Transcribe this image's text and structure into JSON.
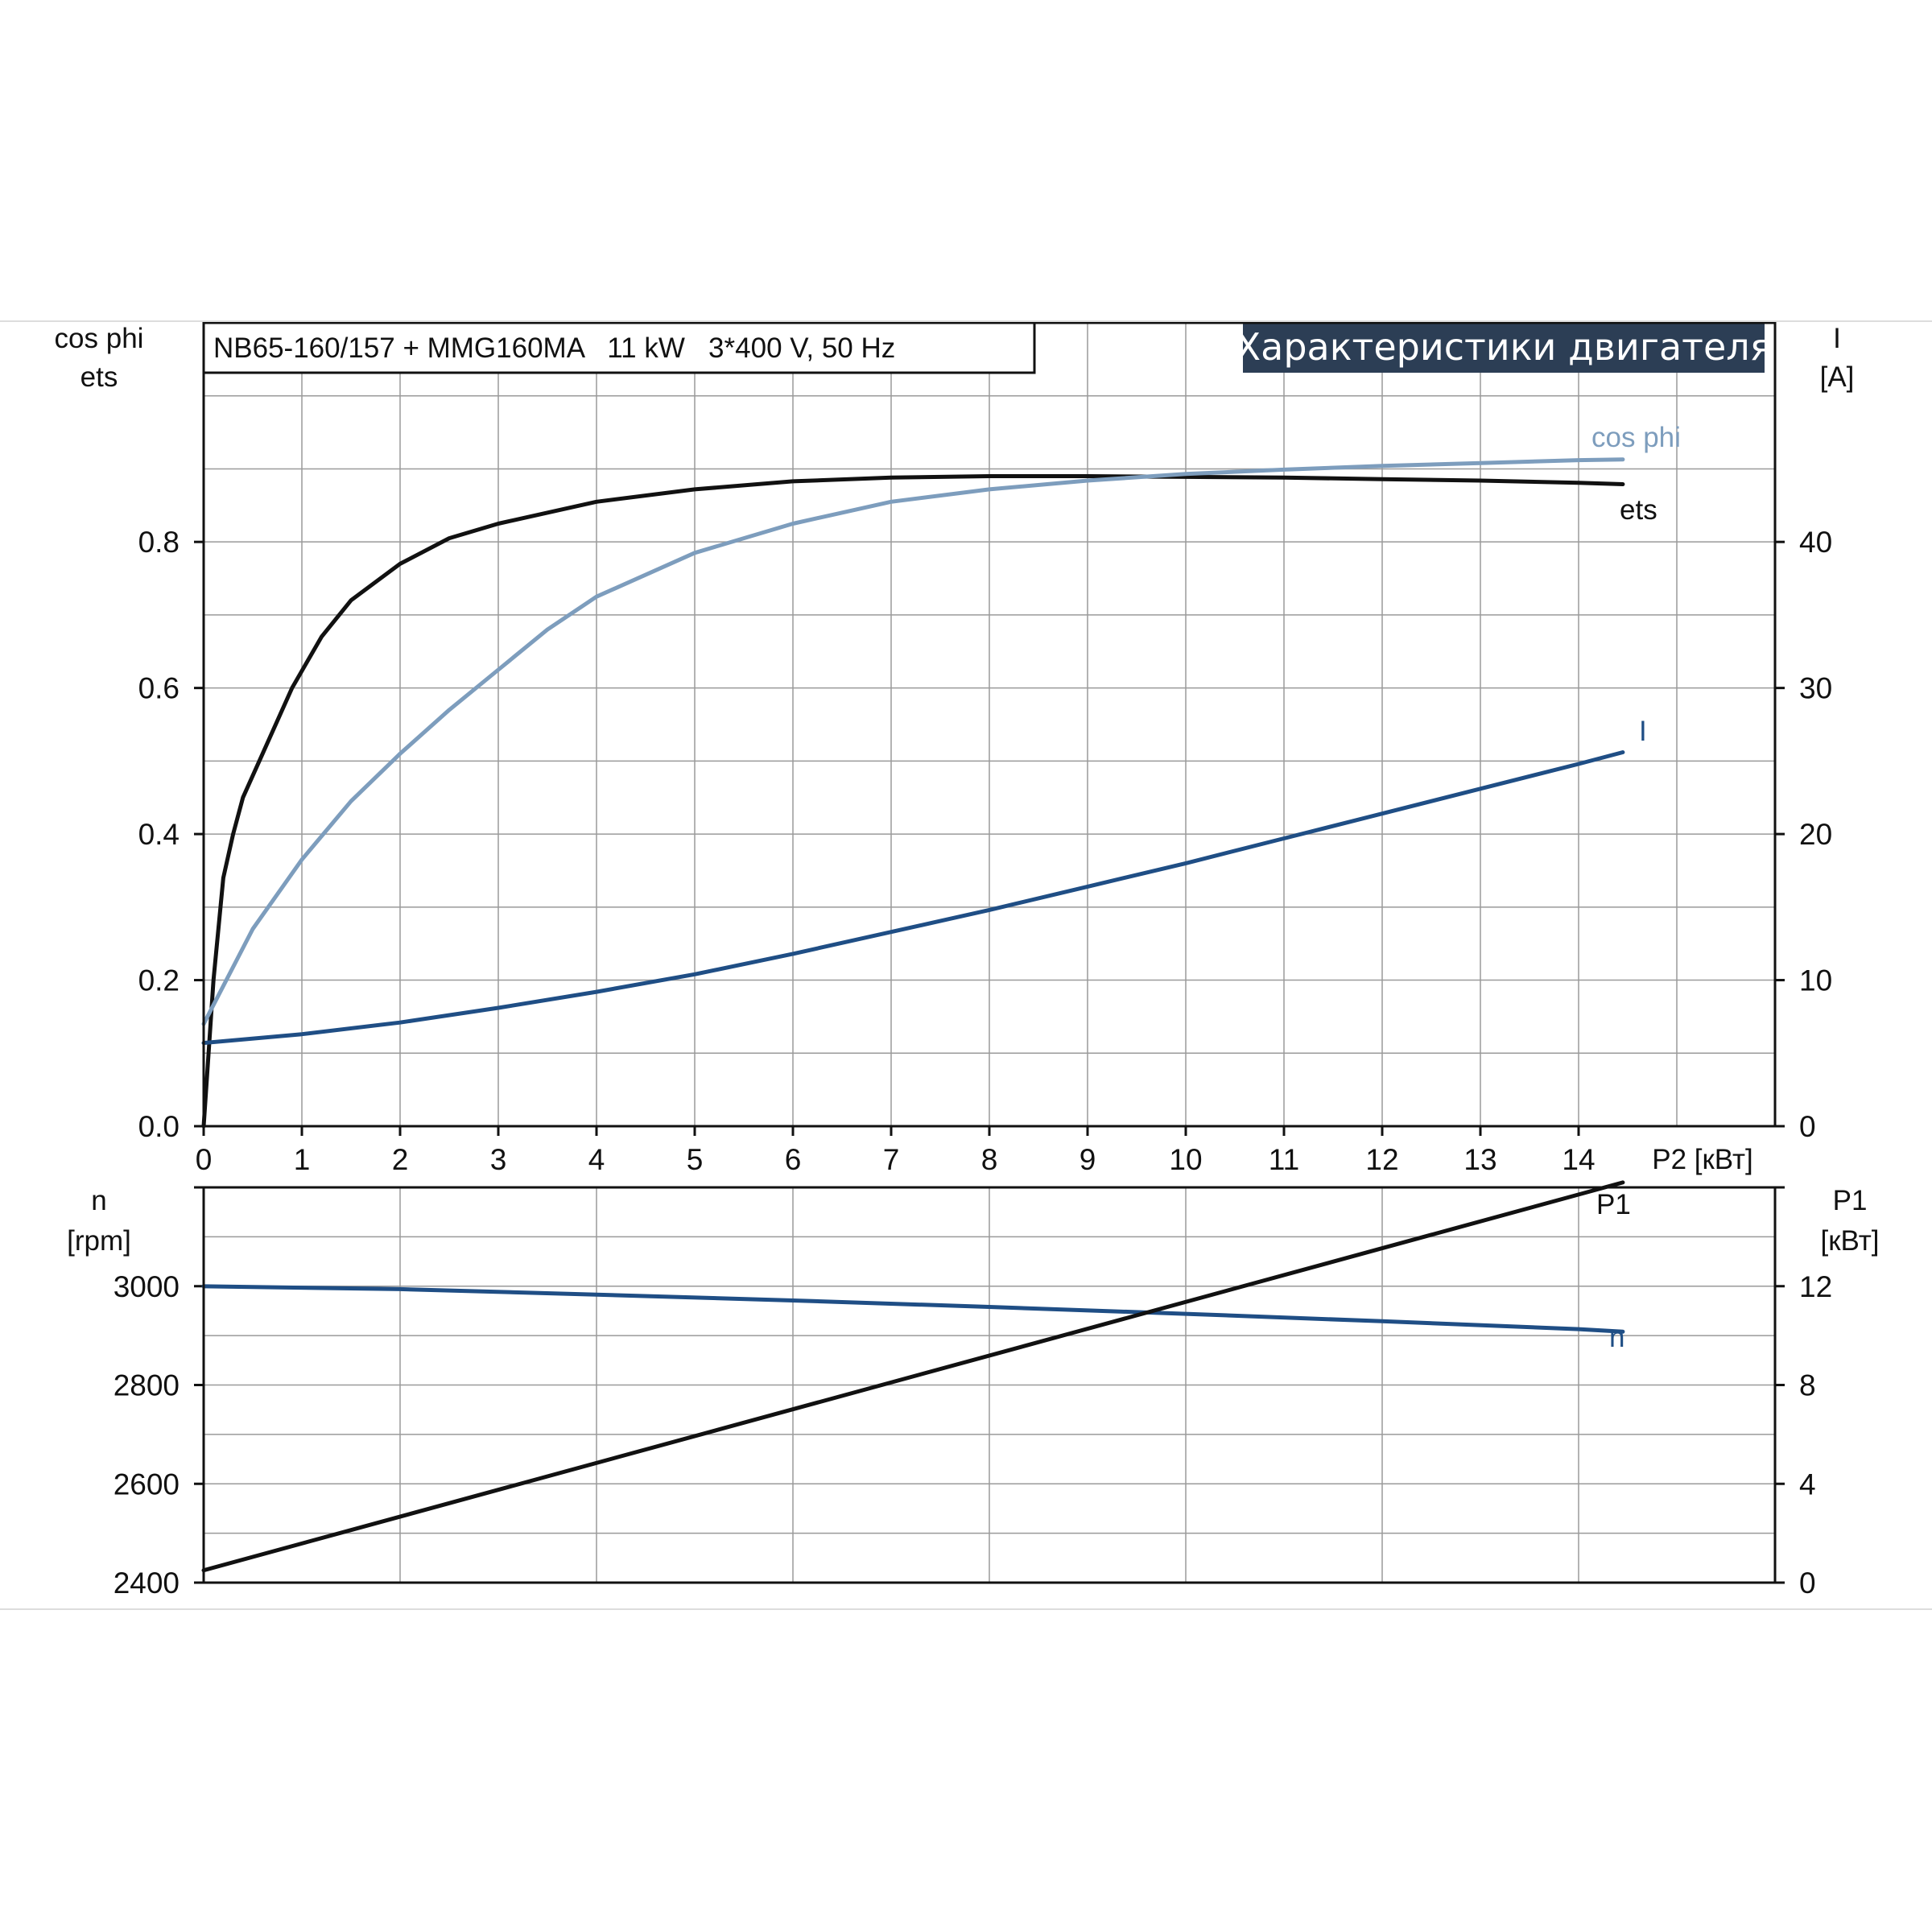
{
  "chart_data": [
    {
      "type": "line",
      "title": "Характеристики двигателя",
      "subtitle": "NB65-160/157 + MMG160MA   11 kW   3*400 V, 50 Hz",
      "xlabel": "P2 [кВт]",
      "xlim": [
        0,
        16
      ],
      "x_ticks": [
        0,
        1,
        2,
        3,
        4,
        5,
        6,
        7,
        8,
        9,
        10,
        11,
        12,
        13,
        14
      ],
      "ylabel_left": [
        "cos phi",
        "ets"
      ],
      "ylim_left": [
        0,
        1.1
      ],
      "y_ticks_left": [
        0.0,
        0.2,
        0.4,
        0.6,
        0.8
      ],
      "ylabel_right": [
        "I",
        "[A]"
      ],
      "ylim_right": [
        0,
        55
      ],
      "y_ticks_right": [
        0,
        10,
        20,
        30,
        40
      ],
      "grid": true,
      "colors": {
        "ets": "#111111",
        "cos_phi": "#7d9dbd",
        "I": "#1f4e85",
        "title_bg": "#2c3e55"
      },
      "series": [
        {
          "name": "ets",
          "axis": "left",
          "x": [
            0,
            0.1,
            0.2,
            0.3,
            0.4,
            0.6,
            0.9,
            1.2,
            1.5,
            2,
            2.5,
            3,
            4,
            5,
            6,
            7,
            8,
            9,
            10,
            11,
            12,
            13,
            14,
            14.45
          ],
          "y": [
            0.0,
            0.2,
            0.34,
            0.4,
            0.45,
            0.51,
            0.6,
            0.67,
            0.72,
            0.77,
            0.805,
            0.825,
            0.855,
            0.872,
            0.883,
            0.888,
            0.89,
            0.89,
            0.889,
            0.888,
            0.886,
            0.884,
            0.881,
            0.879
          ]
        },
        {
          "name": "cos phi",
          "axis": "left",
          "x": [
            0,
            0.5,
            1,
            1.5,
            2,
            2.5,
            3,
            3.5,
            4,
            5,
            6,
            7,
            8,
            9,
            10,
            11,
            12,
            13,
            14,
            14.45
          ],
          "y": [
            0.14,
            0.27,
            0.365,
            0.445,
            0.51,
            0.57,
            0.625,
            0.68,
            0.725,
            0.785,
            0.825,
            0.855,
            0.872,
            0.884,
            0.893,
            0.899,
            0.904,
            0.908,
            0.912,
            0.913
          ]
        },
        {
          "name": "I",
          "axis": "right",
          "x": [
            0,
            1,
            2,
            3,
            4,
            5,
            6,
            7,
            8,
            9,
            10,
            11,
            12,
            13,
            14,
            14.45
          ],
          "y": [
            5.7,
            6.3,
            7.1,
            8.1,
            9.2,
            10.4,
            11.8,
            13.3,
            14.8,
            16.4,
            18.0,
            19.7,
            21.4,
            23.1,
            24.8,
            25.6
          ]
        }
      ]
    },
    {
      "type": "line",
      "xlabel": "",
      "xlim": [
        0,
        16
      ],
      "ylabel_left": [
        "n",
        "[rpm]"
      ],
      "ylim_left": [
        2400,
        3200
      ],
      "y_ticks_left": [
        2400,
        2600,
        2800,
        3000
      ],
      "ylabel_right": [
        "P1",
        "[кВт]"
      ],
      "ylim_right": [
        0,
        16
      ],
      "y_ticks_right": [
        0,
        4,
        8,
        12
      ],
      "grid": true,
      "colors": {
        "n": "#1f4e85",
        "P1": "#111111"
      },
      "series": [
        {
          "name": "n",
          "axis": "left",
          "x": [
            0,
            2,
            4,
            6,
            8,
            10,
            12,
            14,
            14.45
          ],
          "y": [
            3000,
            2994,
            2983,
            2971,
            2958,
            2944,
            2929,
            2913,
            2908
          ]
        },
        {
          "name": "P1",
          "axis": "right",
          "x": [
            0,
            14.45
          ],
          "y": [
            0.5,
            16.2
          ]
        }
      ]
    }
  ]
}
